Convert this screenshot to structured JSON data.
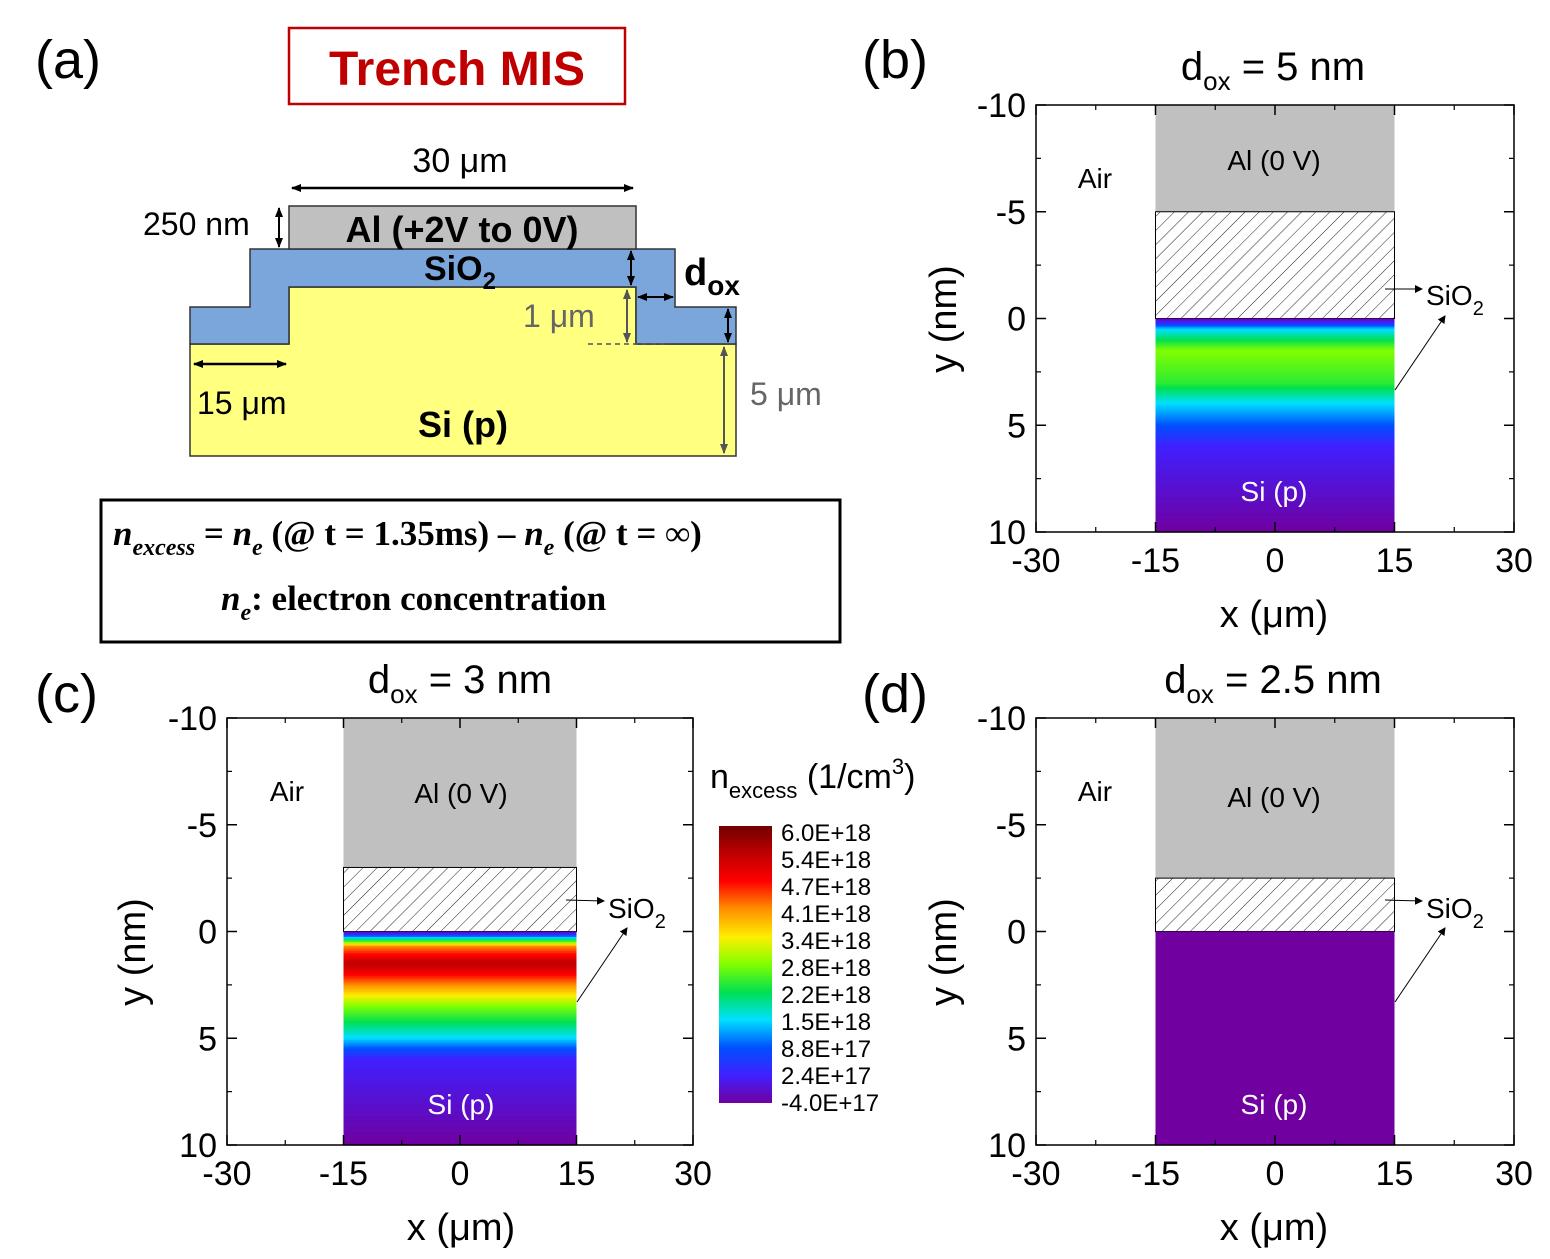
{
  "figure": {
    "panels": {
      "a": {
        "label": "(a)",
        "title": "Trench MIS",
        "title_color": "#c00000",
        "dims": {
          "width": "30 μm",
          "al_thickness": "250 nm",
          "dox": "d",
          "dox_sub": "ox",
          "step": "1 μm",
          "ledge": "15 μm",
          "si_depth": "5 μm"
        },
        "layers": {
          "al": "Al (+2V to 0V)",
          "sio2": "SiO",
          "sio2_sub": "2",
          "si": "Si (p)"
        },
        "colors": {
          "al": "#c0c0c0",
          "sio2": "#7aa6dc",
          "si": "#ffff80"
        },
        "equation": {
          "n1": "n",
          "n1_sub": "excess",
          "eq": " = ",
          "n2": "n",
          "n2_sub": "e",
          "part1": " (@ t = 1.35ms) – ",
          "n3": "n",
          "n3_sub": "e",
          "part2": " (@ t = ∞)",
          "def_n": "n",
          "def_sub": "e",
          "def_text": ": electron concentration"
        }
      },
      "b": {
        "label": "(b)",
        "title_main": "d",
        "title_sub": "ox",
        "title_rest": " = 5 nm",
        "air": "Air",
        "al": "Al (0 V)",
        "sio2": "SiO",
        "sio2_sub": "2",
        "si": "Si (p)",
        "xlabel": "x (μm)",
        "ylabel": "y (nm)"
      },
      "c": {
        "label": "(c)",
        "title_main": "d",
        "title_sub": "ox",
        "title_rest": " = 3 nm",
        "air": "Air",
        "al": "Al (0 V)",
        "sio2": "SiO",
        "sio2_sub": "2",
        "si": "Si (p)",
        "xlabel": "x (μm)",
        "ylabel": "y (nm)"
      },
      "d": {
        "label": "(d)",
        "title_main": "d",
        "title_sub": "ox",
        "title_rest": " = 2.5 nm",
        "air": "Air",
        "al": "Al (0 V)",
        "sio2": "SiO",
        "sio2_sub": "2",
        "si": "Si (p)",
        "xlabel": "x (μm)",
        "ylabel": "y (nm)"
      }
    },
    "colorbar": {
      "title_n": "n",
      "title_sub": "excess",
      "title_unit": " (1/cm",
      "title_sup": "3",
      "title_close": ")",
      "ticks": [
        "6.0E+18",
        "5.4E+18",
        "4.7E+18",
        "4.1E+18",
        "3.4E+18",
        "2.8E+18",
        "2.2E+18",
        "1.5E+18",
        "8.8E+17",
        "2.4E+17",
        "-4.0E+17"
      ]
    }
  },
  "chart_data": [
    {
      "panel": "b",
      "type": "heatmap",
      "xlim": [
        -30,
        30
      ],
      "ylim": [
        10,
        -10
      ],
      "x_ticks": [
        "-30",
        "-15",
        "0",
        "15",
        "30"
      ],
      "y_ticks": [
        "-10",
        "-5",
        "0",
        "5",
        "10"
      ],
      "regions": [
        {
          "name": "Al (0 V)",
          "x": [
            -15,
            15
          ],
          "y": [
            -10,
            -5
          ]
        },
        {
          "name": "SiO2",
          "x": [
            -15,
            15
          ],
          "y": [
            -5,
            0
          ]
        },
        {
          "name": "Si (p)",
          "x": [
            -15,
            15
          ],
          "y": [
            0,
            10
          ]
        }
      ],
      "profile_y": [
        0,
        0.5,
        1.5,
        3,
        4,
        5,
        6,
        10
      ],
      "profile_n": [
        -4e+17,
        1.5e+18,
        2.8e+18,
        2.4e+18,
        1.5e+18,
        8.8e+17,
        2.4e+17,
        -4e+17
      ]
    },
    {
      "panel": "c",
      "type": "heatmap",
      "xlim": [
        -30,
        30
      ],
      "ylim": [
        10,
        -10
      ],
      "x_ticks": [
        "-30",
        "-15",
        "0",
        "15",
        "30"
      ],
      "y_ticks": [
        "-10",
        "-5",
        "0",
        "5",
        "10"
      ],
      "regions": [
        {
          "name": "Al (0 V)",
          "x": [
            -15,
            15
          ],
          "y": [
            -10,
            -3
          ]
        },
        {
          "name": "SiO2",
          "x": [
            -15,
            15
          ],
          "y": [
            -3,
            0
          ]
        },
        {
          "name": "Si (p)",
          "x": [
            -15,
            15
          ],
          "y": [
            0,
            10
          ]
        }
      ],
      "profile_y": [
        0,
        0.3,
        0.7,
        1.5,
        2.5,
        3.5,
        5,
        6,
        10
      ],
      "profile_n": [
        -4e+17,
        1.5e+18,
        4.1e+18,
        5.4e+18,
        4.1e+18,
        2.8e+18,
        1.5e+18,
        2.4e+17,
        -4e+17
      ]
    },
    {
      "panel": "d",
      "type": "heatmap",
      "xlim": [
        -30,
        30
      ],
      "ylim": [
        10,
        -10
      ],
      "x_ticks": [
        "-30",
        "-15",
        "0",
        "15",
        "30"
      ],
      "y_ticks": [
        "-10",
        "-5",
        "0",
        "5",
        "10"
      ],
      "regions": [
        {
          "name": "Al (0 V)",
          "x": [
            -15,
            15
          ],
          "y": [
            -10,
            -2.5
          ]
        },
        {
          "name": "SiO2",
          "x": [
            -15,
            15
          ],
          "y": [
            -2.5,
            0
          ]
        },
        {
          "name": "Si (p)",
          "x": [
            -15,
            15
          ],
          "y": [
            0,
            10
          ]
        }
      ],
      "profile_y": [
        0,
        10
      ],
      "profile_n": [
        -4e+17,
        -4e+17
      ]
    }
  ]
}
